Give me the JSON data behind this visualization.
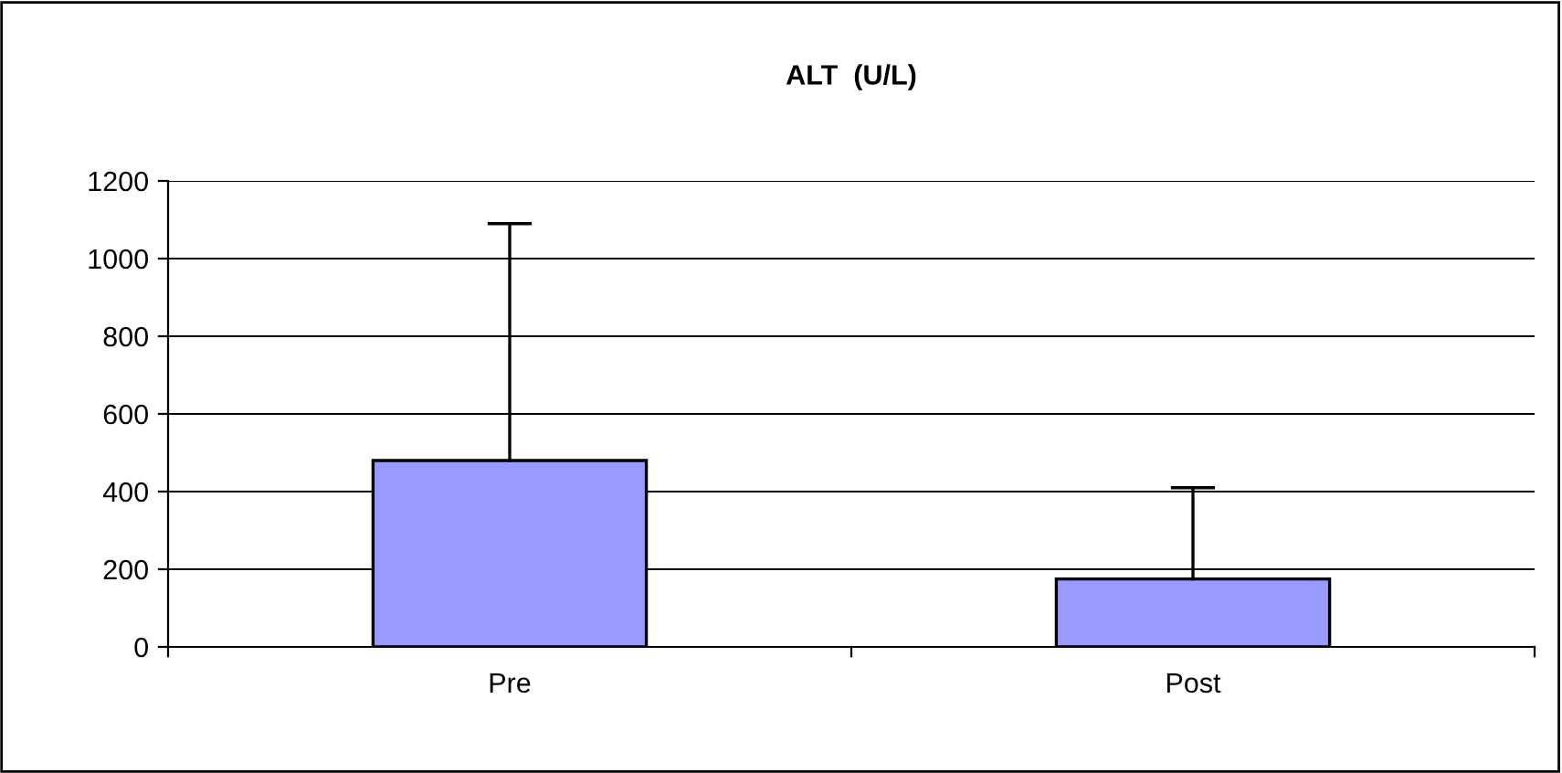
{
  "chart_data": {
    "type": "bar",
    "title": "ALT  (U/L)",
    "categories": [
      "Pre",
      "Post"
    ],
    "values": [
      480,
      175
    ],
    "errors": [
      [
        480,
        1090
      ],
      [
        175,
        410
      ]
    ],
    "color": "#9999ff",
    "ylim": [
      0,
      1200
    ],
    "yticks": [
      0,
      200,
      400,
      600,
      800,
      1000,
      1200
    ],
    "grid": "y"
  }
}
